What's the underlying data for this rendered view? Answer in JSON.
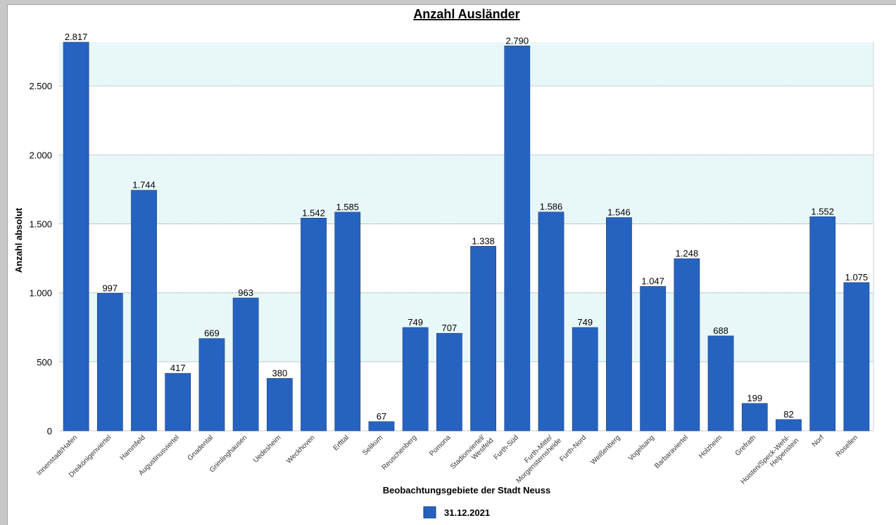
{
  "chart_data": {
    "type": "bar",
    "title": "Anzahl Ausländer",
    "xlabel": "Beobachtungsgebiete der Stadt Neuss",
    "ylabel": "Anzahl absolut",
    "ylim": [
      0,
      2817
    ],
    "yticks": [
      0,
      500,
      1000,
      1500,
      2000,
      2500
    ],
    "ytick_labels": [
      "0",
      "500",
      "1.000",
      "1.500",
      "2.000",
      "2.500"
    ],
    "grid": true,
    "legend_position": "bottom",
    "categories": [
      [
        "Innenstadt/Hafen"
      ],
      [
        "Dreikönigenviertel"
      ],
      [
        "Hammfeld"
      ],
      [
        "Augustinusviertel"
      ],
      [
        "Gnadental"
      ],
      [
        "Grimlinghausen"
      ],
      [
        "Uedesheim"
      ],
      [
        "Weckhoven"
      ],
      [
        "Erfttal"
      ],
      [
        "Selikum"
      ],
      [
        "Reuschenberg"
      ],
      [
        "Pomona"
      ],
      [
        "Stadionviertel/",
        "Westfeld"
      ],
      [
        "Furth-Süd"
      ],
      [
        "Furth-Mitte/",
        "Morgensternsheide"
      ],
      [
        "Furth-Nord"
      ],
      [
        "Weißenberg"
      ],
      [
        "Vogelsang"
      ],
      [
        "Barbaraviertel"
      ],
      [
        "Holzheim"
      ],
      [
        "Grefrath"
      ],
      [
        "Hoisten/Speck-Wehl-",
        "Helpenstein"
      ],
      [
        "Norf"
      ],
      [
        "Rosellen"
      ]
    ],
    "series": [
      {
        "name": "31.12.2021",
        "color": "#2663c1",
        "values": [
          2817,
          997,
          1744,
          417,
          669,
          963,
          380,
          1542,
          1585,
          67,
          749,
          707,
          1338,
          2790,
          1586,
          749,
          1546,
          1047,
          1248,
          688,
          199,
          82,
          1552,
          1075
        ],
        "labels": [
          "2.817",
          "997",
          "1.744",
          "417",
          "669",
          "963",
          "380",
          "1.542",
          "1.585",
          "67",
          "749",
          "707",
          "1.338",
          "2.790",
          "1.586",
          "749",
          "1.546",
          "1.047",
          "1.248",
          "688",
          "199",
          "82",
          "1.552",
          "1.075"
        ]
      }
    ],
    "band_color": "#e8f7f8",
    "grid_color": "#6a8a9a"
  }
}
